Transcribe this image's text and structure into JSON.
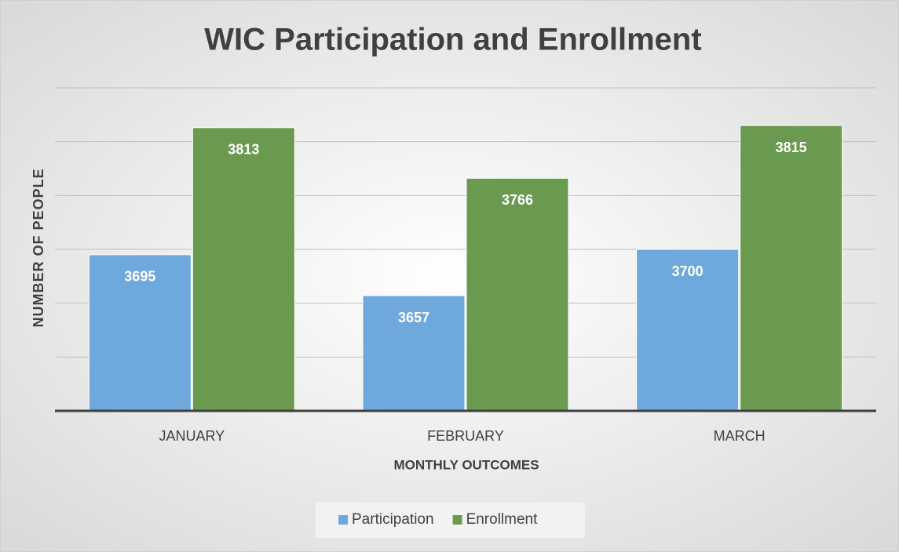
{
  "chart_data": {
    "type": "bar",
    "title": "WIC Participation and Enrollment",
    "x_label": "MONTHLY OUTCOMES",
    "y_label": "NUMBER OF PEOPLE",
    "categories": [
      "JANUARY",
      "FEBRUARY",
      "MARCH"
    ],
    "series": [
      {
        "name": "Participation",
        "color": "#6fa8dc",
        "values": [
          3695,
          3657,
          3700
        ]
      },
      {
        "name": "Enrollment",
        "color": "#6a9a4f",
        "values": [
          3813,
          3766,
          3815
        ]
      }
    ],
    "ylim": [
      3550,
      3850
    ],
    "yticks": [
      3550,
      3600,
      3650,
      3700,
      3750,
      3800,
      3850
    ],
    "grid": true,
    "legend": "bottom"
  }
}
